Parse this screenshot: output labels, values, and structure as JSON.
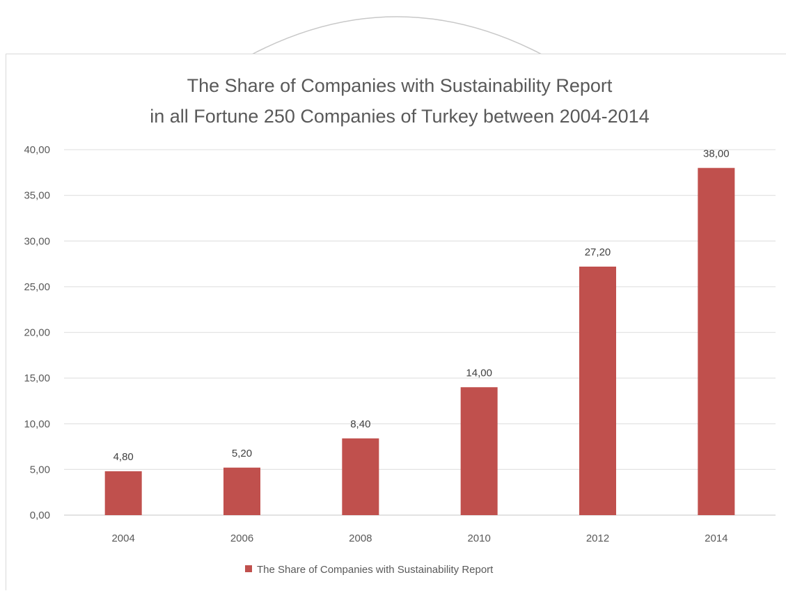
{
  "chart_data": {
    "type": "bar",
    "title": "The Share of Companies with Sustainability Report",
    "subtitle": "in all Fortune 250 Companies of Turkey between 2004-2014",
    "categories": [
      "2004",
      "2006",
      "2008",
      "2010",
      "2012",
      "2014"
    ],
    "series": [
      {
        "name": "The Share of Companies with Sustainability Report",
        "values": [
          4.8,
          5.2,
          8.4,
          14.0,
          27.2,
          38.0
        ],
        "labels": [
          "4,80",
          "5,20",
          "8,40",
          "14,00",
          "27,20",
          "38,00"
        ],
        "color": "#c0504d"
      }
    ],
    "ylim": [
      0,
      40
    ],
    "yticks": [
      0,
      5,
      10,
      15,
      20,
      25,
      30,
      35,
      40
    ],
    "ytick_labels": [
      "0,00",
      "5,00",
      "10,00",
      "15,00",
      "20,00",
      "25,00",
      "30,00",
      "35,00",
      "40,00"
    ],
    "xlabel": "",
    "ylabel": "",
    "grid": true,
    "legend_position": "bottom",
    "colors": {
      "bar": "#c0504d",
      "grid": "#e3e3e3",
      "text": "#595959"
    }
  }
}
